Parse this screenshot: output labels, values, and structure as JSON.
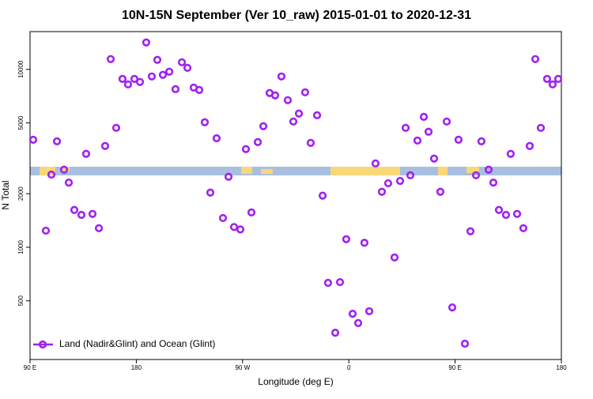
{
  "chart_data": {
    "type": "scatter",
    "title": "10N-15N September (Ver 10_raw)   2015-01-01 to 2020-12-31",
    "xlabel": "Longitude (deg E)",
    "ylabel": "N Total",
    "xlim": [
      90,
      540
    ],
    "ylim": [
      234,
      16300
    ],
    "ylog": true,
    "xticks": [
      {
        "value": 90,
        "label": "90 E"
      },
      180,
      {
        "value": 270,
        "label": "90 W"
      },
      {
        "value": 360,
        "label": "0"
      },
      {
        "value": 450,
        "label": "90 E"
      },
      {
        "value": 540,
        "label": "180"
      }
    ],
    "yticks": [
      500,
      1000,
      2000,
      5000,
      10000
    ],
    "legend": "lower left",
    "series": [
      {
        "name": "Land (Nadir&Glint) and Ocean (Glint)",
        "color": "#a020f0",
        "x": [
          92.7,
          103.4,
          108.1,
          112.8,
          118.8,
          122.8,
          127.5,
          133.5,
          137.5,
          142.9,
          148.3,
          153.6,
          158.3,
          163.0,
          168.3,
          173.0,
          178.4,
          183.1,
          188.4,
          193.1,
          197.8,
          202.5,
          207.9,
          213.2,
          218.6,
          223.3,
          228.6,
          233.3,
          238.0,
          242.7,
          248.0,
          253.4,
          258.1,
          262.8,
          268.1,
          272.8,
          277.5,
          282.9,
          287.6,
          292.9,
          297.6,
          302.9,
          308.3,
          313.0,
          317.7,
          323.0,
          327.7,
          333.1,
          337.8,
          342.4,
          348.5,
          352.5,
          357.8,
          363.2,
          367.9,
          373.2,
          377.3,
          382.6,
          388.0,
          393.3,
          398.7,
          403.4,
          408.1,
          412.1,
          418.1,
          423.5,
          427.5,
          432.2,
          437.5,
          442.9,
          447.6,
          452.9,
          458.3,
          463.0,
          467.7,
          472.3,
          478.4,
          482.4,
          487.1,
          493.1,
          497.1,
          502.5,
          507.8,
          513.2,
          517.9,
          522.6,
          527.9,
          532.6,
          537.3
        ],
        "values": [
          4020,
          1240,
          2560,
          3940,
          2730,
          2310,
          1620,
          1520,
          3350,
          1540,
          1280,
          3710,
          11420,
          4690,
          8840,
          8230,
          8840,
          8490,
          14160,
          9120,
          11310,
          9310,
          9700,
          7740,
          10960,
          10200,
          7900,
          7660,
          5040,
          2030,
          4100,
          1460,
          2490,
          1300,
          1260,
          3560,
          1570,
          3900,
          4790,
          7360,
          7140,
          9120,
          6710,
          5090,
          5640,
          7430,
          3860,
          5520,
          1950,
          631,
          331,
          637,
          1110,
          423,
          375,
          1060,
          437,
          2960,
          2050,
          2290,
          876,
          2360,
          4690,
          2540,
          3980,
          5410,
          4460,
          3150,
          2050,
          5090,
          459,
          4020,
          287,
          1230,
          2540,
          3940,
          2730,
          2310,
          1620,
          1520,
          3350,
          1540,
          1280,
          3710,
          11420,
          4690,
          8840,
          8230,
          8840
        ]
      }
    ]
  }
}
